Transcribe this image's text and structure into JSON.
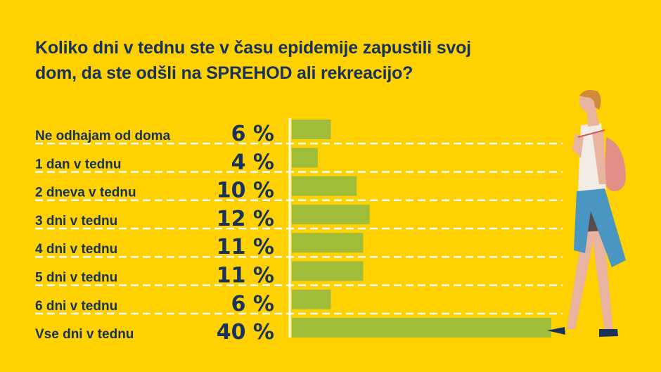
{
  "title": {
    "line1": "Koliko dni v tednu ste v času epidemije zapustili svoj",
    "line2_pre": "dom, da ste odšli na ",
    "line2_bold": "SPREHOD",
    "line2_post": " ali rekreacijo?"
  },
  "colors": {
    "background": "#FFD100",
    "text": "#17325c",
    "bar": "#a0bd3a",
    "axis": "#ffffff"
  },
  "chart_data": {
    "type": "bar",
    "orientation": "horizontal",
    "title": "Koliko dni v tednu ste v času epidemije zapustili svoj dom, da ste odšli na SPREHOD ali rekreacijo?",
    "categories": [
      "Ne odhajam od doma",
      "1 dan v tednu",
      "2 dneva v tednu",
      "3 dni v tednu",
      "4 dni v tednu",
      "5 dni v tednu",
      "6 dni v tednu",
      "Vse dni v tednu"
    ],
    "values": [
      6,
      4,
      10,
      12,
      11,
      11,
      6,
      40
    ],
    "value_labels": [
      "6 %",
      "4 %",
      "10 %",
      "12 %",
      "11 %",
      "11 %",
      "6 %",
      "40 %"
    ],
    "unit": "%",
    "xlim": [
      0,
      40
    ],
    "grid": "dashed row separators"
  },
  "illustration": "walking-woman-with-backpack-icon"
}
